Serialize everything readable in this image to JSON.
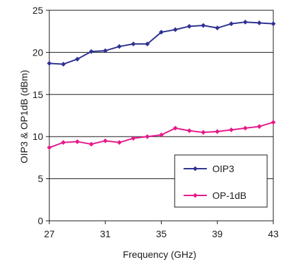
{
  "chart_data": {
    "type": "line",
    "xlabel": "Frequency (GHz)",
    "ylabel": "OIP3 & OP1dB (dBm)",
    "xlim": [
      27,
      43
    ],
    "ylim": [
      0,
      25
    ],
    "xticks": [
      27,
      31,
      35,
      39,
      43
    ],
    "yticks": [
      0,
      5,
      10,
      15,
      20,
      25
    ],
    "grid": true,
    "legend_position": "bottom-right",
    "x": [
      27,
      28,
      29,
      30,
      31,
      32,
      33,
      34,
      35,
      36,
      37,
      38,
      39,
      40,
      41,
      42,
      43
    ],
    "series": [
      {
        "name": "OIP3",
        "color": "#2e3192",
        "values": [
          18.7,
          18.6,
          19.2,
          20.1,
          20.2,
          20.7,
          21.0,
          21.0,
          22.4,
          22.7,
          23.1,
          23.2,
          22.9,
          23.4,
          23.6,
          23.5,
          23.4
        ]
      },
      {
        "name": "OP-1dB",
        "color": "#e6198a",
        "values": [
          8.7,
          9.3,
          9.4,
          9.1,
          9.5,
          9.3,
          9.8,
          10.0,
          10.2,
          11.0,
          10.7,
          10.5,
          10.6,
          10.8,
          11.0,
          11.2,
          11.7
        ]
      }
    ]
  }
}
